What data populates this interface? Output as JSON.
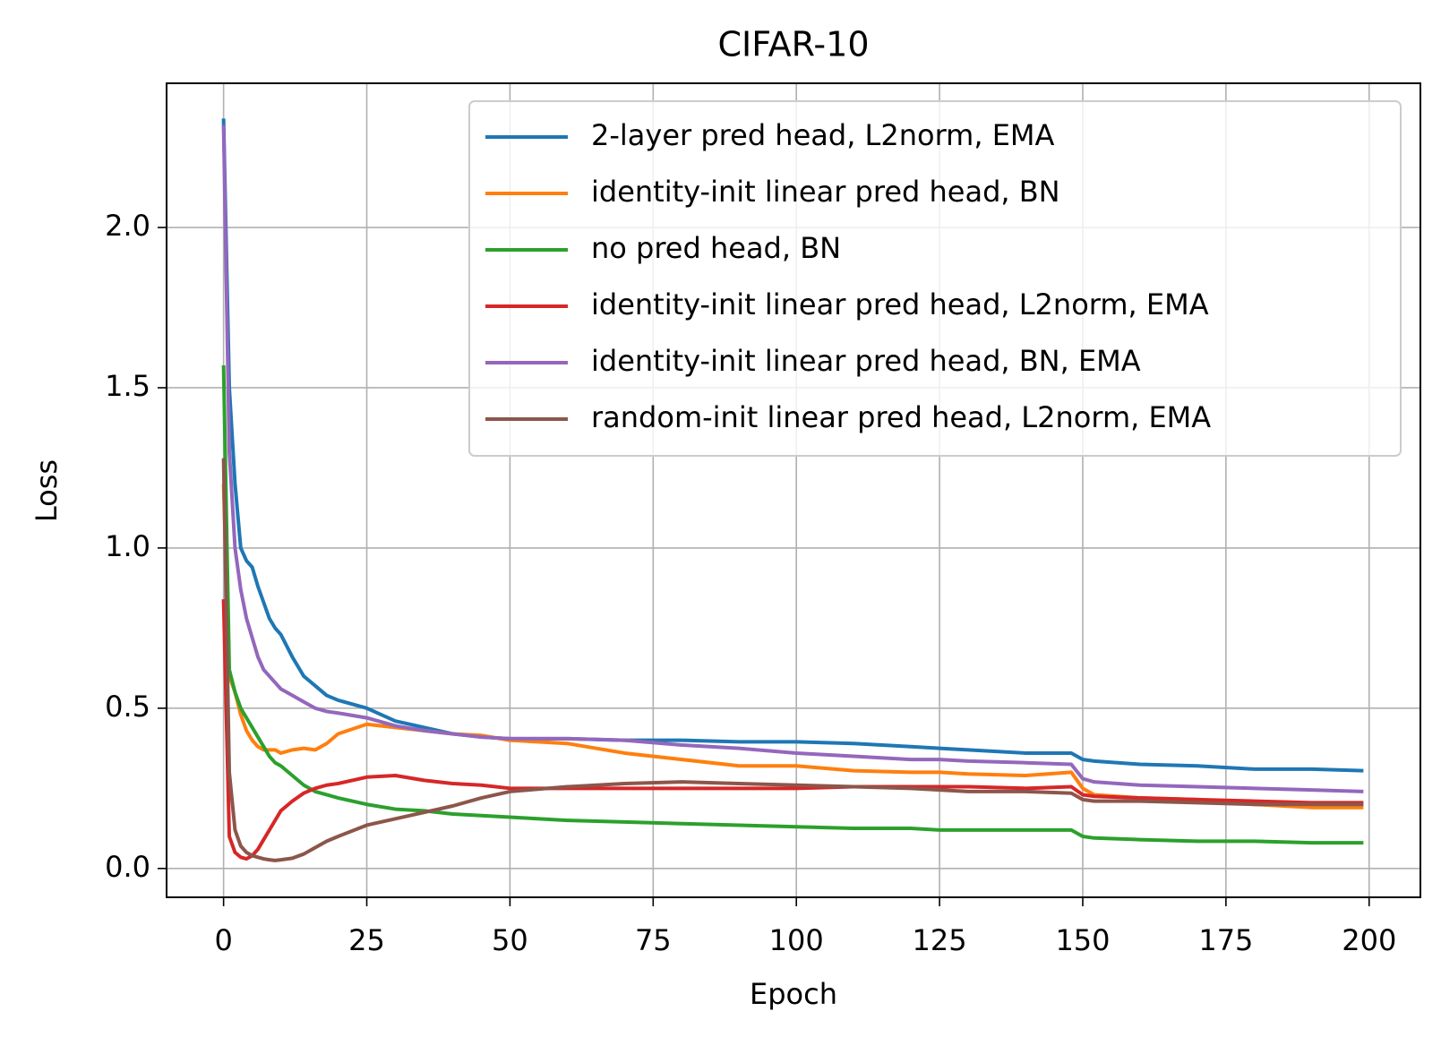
{
  "chart_data": {
    "type": "line",
    "title": "CIFAR-10",
    "x_label": "Epoch",
    "y_label": "Loss",
    "x": [
      0,
      1,
      2,
      3,
      4,
      5,
      6,
      7,
      8,
      9,
      10,
      12,
      14,
      16,
      18,
      20,
      25,
      30,
      35,
      40,
      45,
      50,
      60,
      70,
      80,
      90,
      100,
      110,
      120,
      125,
      130,
      140,
      148,
      150,
      152,
      160,
      170,
      180,
      190,
      199
    ],
    "series": [
      {
        "name": "2-layer pred head, L2norm, EMA",
        "color": "#1f77b4",
        "values": [
          2.34,
          1.5,
          1.2,
          1.0,
          0.96,
          0.94,
          0.88,
          0.83,
          0.78,
          0.75,
          0.73,
          0.66,
          0.6,
          0.57,
          0.54,
          0.525,
          0.5,
          0.46,
          0.44,
          0.42,
          0.41,
          0.405,
          0.405,
          0.4,
          0.4,
          0.395,
          0.395,
          0.39,
          0.38,
          0.375,
          0.37,
          0.36,
          0.36,
          0.34,
          0.335,
          0.325,
          0.32,
          0.31,
          0.31,
          0.305
        ]
      },
      {
        "name": "identity-init linear pred head, BN",
        "color": "#ff7f0e",
        "values": [
          1.2,
          0.6,
          0.55,
          0.48,
          0.43,
          0.4,
          0.38,
          0.37,
          0.37,
          0.37,
          0.36,
          0.37,
          0.375,
          0.37,
          0.39,
          0.42,
          0.45,
          0.44,
          0.43,
          0.42,
          0.415,
          0.4,
          0.39,
          0.36,
          0.34,
          0.32,
          0.32,
          0.305,
          0.3,
          0.3,
          0.295,
          0.29,
          0.3,
          0.25,
          0.23,
          0.22,
          0.215,
          0.2,
          0.19,
          0.19
        ]
      },
      {
        "name": "no pred head, BN",
        "color": "#2ca02c",
        "values": [
          1.57,
          0.62,
          0.55,
          0.5,
          0.47,
          0.44,
          0.41,
          0.38,
          0.35,
          0.33,
          0.32,
          0.29,
          0.26,
          0.24,
          0.23,
          0.22,
          0.2,
          0.185,
          0.18,
          0.17,
          0.165,
          0.16,
          0.15,
          0.145,
          0.14,
          0.135,
          0.13,
          0.125,
          0.125,
          0.12,
          0.12,
          0.12,
          0.12,
          0.1,
          0.095,
          0.09,
          0.085,
          0.085,
          0.08,
          0.08
        ]
      },
      {
        "name": "identity-init linear pred head, L2norm, EMA",
        "color": "#d62728",
        "values": [
          0.84,
          0.1,
          0.05,
          0.035,
          0.03,
          0.04,
          0.06,
          0.09,
          0.12,
          0.15,
          0.18,
          0.21,
          0.235,
          0.25,
          0.26,
          0.265,
          0.285,
          0.29,
          0.275,
          0.265,
          0.26,
          0.25,
          0.25,
          0.25,
          0.25,
          0.25,
          0.25,
          0.255,
          0.255,
          0.255,
          0.255,
          0.25,
          0.255,
          0.23,
          0.225,
          0.22,
          0.215,
          0.21,
          0.205,
          0.205
        ]
      },
      {
        "name": "identity-init linear pred head, BN, EMA",
        "color": "#9467bd",
        "values": [
          2.32,
          1.3,
          1.0,
          0.87,
          0.78,
          0.72,
          0.66,
          0.62,
          0.6,
          0.58,
          0.56,
          0.54,
          0.52,
          0.5,
          0.49,
          0.485,
          0.47,
          0.445,
          0.43,
          0.42,
          0.41,
          0.405,
          0.405,
          0.4,
          0.385,
          0.375,
          0.36,
          0.35,
          0.34,
          0.34,
          0.335,
          0.33,
          0.325,
          0.28,
          0.27,
          0.26,
          0.255,
          0.25,
          0.245,
          0.24
        ]
      },
      {
        "name": "random-init linear pred head, L2norm, EMA",
        "color": "#8c564b",
        "values": [
          1.28,
          0.3,
          0.12,
          0.07,
          0.05,
          0.04,
          0.035,
          0.03,
          0.027,
          0.025,
          0.027,
          0.032,
          0.045,
          0.065,
          0.085,
          0.1,
          0.135,
          0.155,
          0.175,
          0.195,
          0.22,
          0.24,
          0.255,
          0.265,
          0.27,
          0.265,
          0.26,
          0.255,
          0.25,
          0.245,
          0.24,
          0.24,
          0.235,
          0.215,
          0.21,
          0.21,
          0.205,
          0.2,
          0.2,
          0.2
        ]
      }
    ],
    "xlim": [
      -9.95,
      208.95
    ],
    "ylim": [
      -0.09,
      2.45
    ],
    "xticks": [
      0,
      25,
      50,
      75,
      100,
      125,
      150,
      175,
      200
    ],
    "yticks": [
      {
        "value": 0,
        "label": "0.0"
      },
      0.5,
      {
        "value": 1,
        "label": "1.0"
      },
      1.5,
      {
        "value": 2,
        "label": "2.0"
      }
    ],
    "grid": true,
    "legend": "upper right"
  }
}
